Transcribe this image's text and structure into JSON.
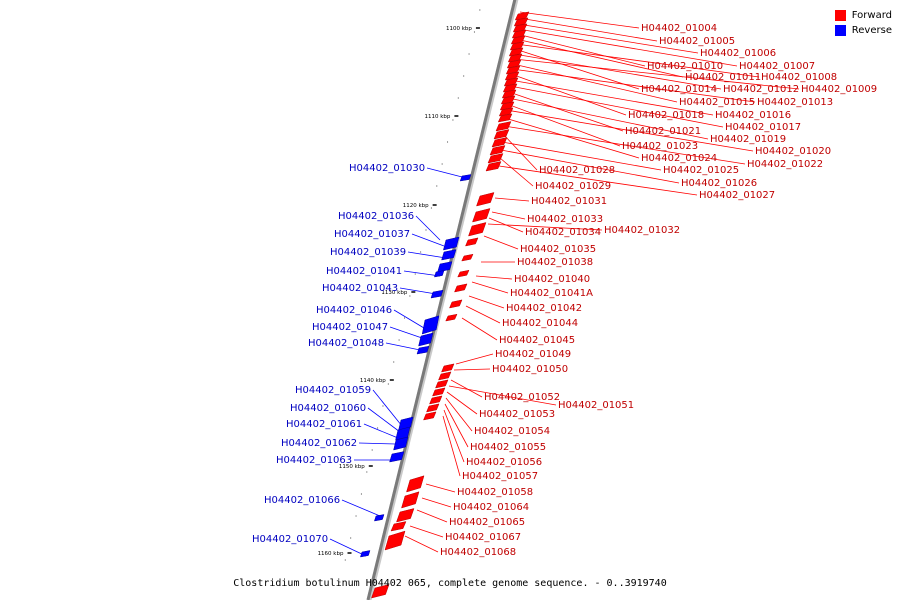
{
  "legend": {
    "forward_label": "Forward",
    "reverse_label": "Reverse",
    "forward_color": "#ff0000",
    "reverse_color": "#0000ff"
  },
  "caption": "Clostridium botulinum H04402 065, complete genome sequence. - 0..3919740",
  "ticks": [
    {
      "label": "1100 kbp"
    },
    {
      "label": "1110 kbp"
    },
    {
      "label": "1120 kbp"
    },
    {
      "label": "1130 kbp"
    },
    {
      "label": "1140 kbp"
    },
    {
      "label": "1150 kbp"
    },
    {
      "label": "1160 kbp"
    }
  ],
  "forward_genes": [
    "H04402_01004",
    "H04402_01005",
    "H04402_01006",
    "H04402_01007",
    "H04402_01010",
    "H04402_01011",
    "H04402_01008",
    "H04402_01014",
    "H04402_01012",
    "H04402_01009",
    "H04402_01015",
    "H04402_01013",
    "H04402_01018",
    "H04402_01016",
    "H04402_01017",
    "H04402_01021",
    "H04402_01019",
    "H04402_01023",
    "H04402_01020",
    "H04402_01024",
    "H04402_01022",
    "H04402_01028",
    "H04402_01025",
    "H04402_01026",
    "H04402_01029",
    "H04402_01027",
    "H04402_01031",
    "H04402_01033",
    "H04402_01034",
    "H04402_01032",
    "H04402_01035",
    "H04402_01038",
    "H04402_01040",
    "H04402_01041A",
    "H04402_01042",
    "H04402_01044",
    "H04402_01045",
    "H04402_01049",
    "H04402_01050",
    "H04402_01052",
    "H04402_01051",
    "H04402_01053",
    "H04402_01054",
    "H04402_01055",
    "H04402_01056",
    "H04402_01057",
    "H04402_01058",
    "H04402_01064",
    "H04402_01065",
    "H04402_01067",
    "H04402_01068"
  ],
  "reverse_genes": [
    "H04402_01030",
    "H04402_01036",
    "H04402_01037",
    "H04402_01039",
    "H04402_01041",
    "H04402_01043",
    "H04402_01046",
    "H04402_01047",
    "H04402_01048",
    "H04402_01059",
    "H04402_01060",
    "H04402_01061",
    "H04402_01062",
    "H04402_01063",
    "H04402_01066",
    "H04402_01070"
  ]
}
